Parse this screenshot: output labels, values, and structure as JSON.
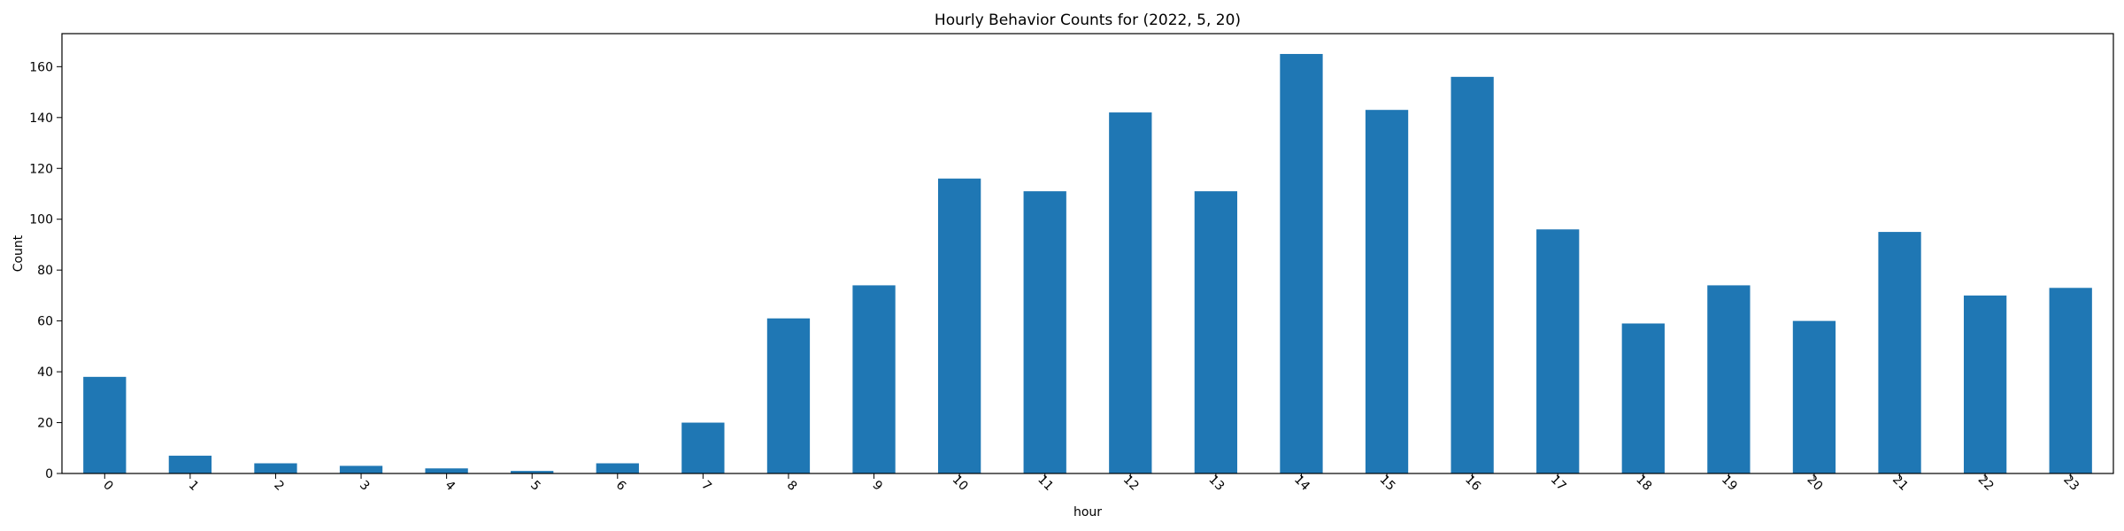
{
  "chart_data": {
    "type": "bar",
    "title": "Hourly Behavior Counts for (2022, 5, 20)",
    "xlabel": "hour",
    "ylabel": "Count",
    "categories": [
      "0",
      "1",
      "2",
      "3",
      "4",
      "5",
      "6",
      "7",
      "8",
      "9",
      "10",
      "11",
      "12",
      "13",
      "14",
      "15",
      "16",
      "17",
      "18",
      "19",
      "20",
      "21",
      "22",
      "23"
    ],
    "values": [
      38,
      7,
      4,
      3,
      2,
      1,
      4,
      20,
      61,
      74,
      116,
      111,
      142,
      111,
      165,
      143,
      156,
      96,
      59,
      74,
      60,
      95,
      70,
      73
    ],
    "ylim": [
      0,
      173
    ],
    "yticks": [
      0,
      20,
      40,
      60,
      80,
      100,
      120,
      140,
      160
    ],
    "xtick_rotation": 45,
    "grid": false,
    "legend": false,
    "bar_color": "#1f77b4"
  }
}
